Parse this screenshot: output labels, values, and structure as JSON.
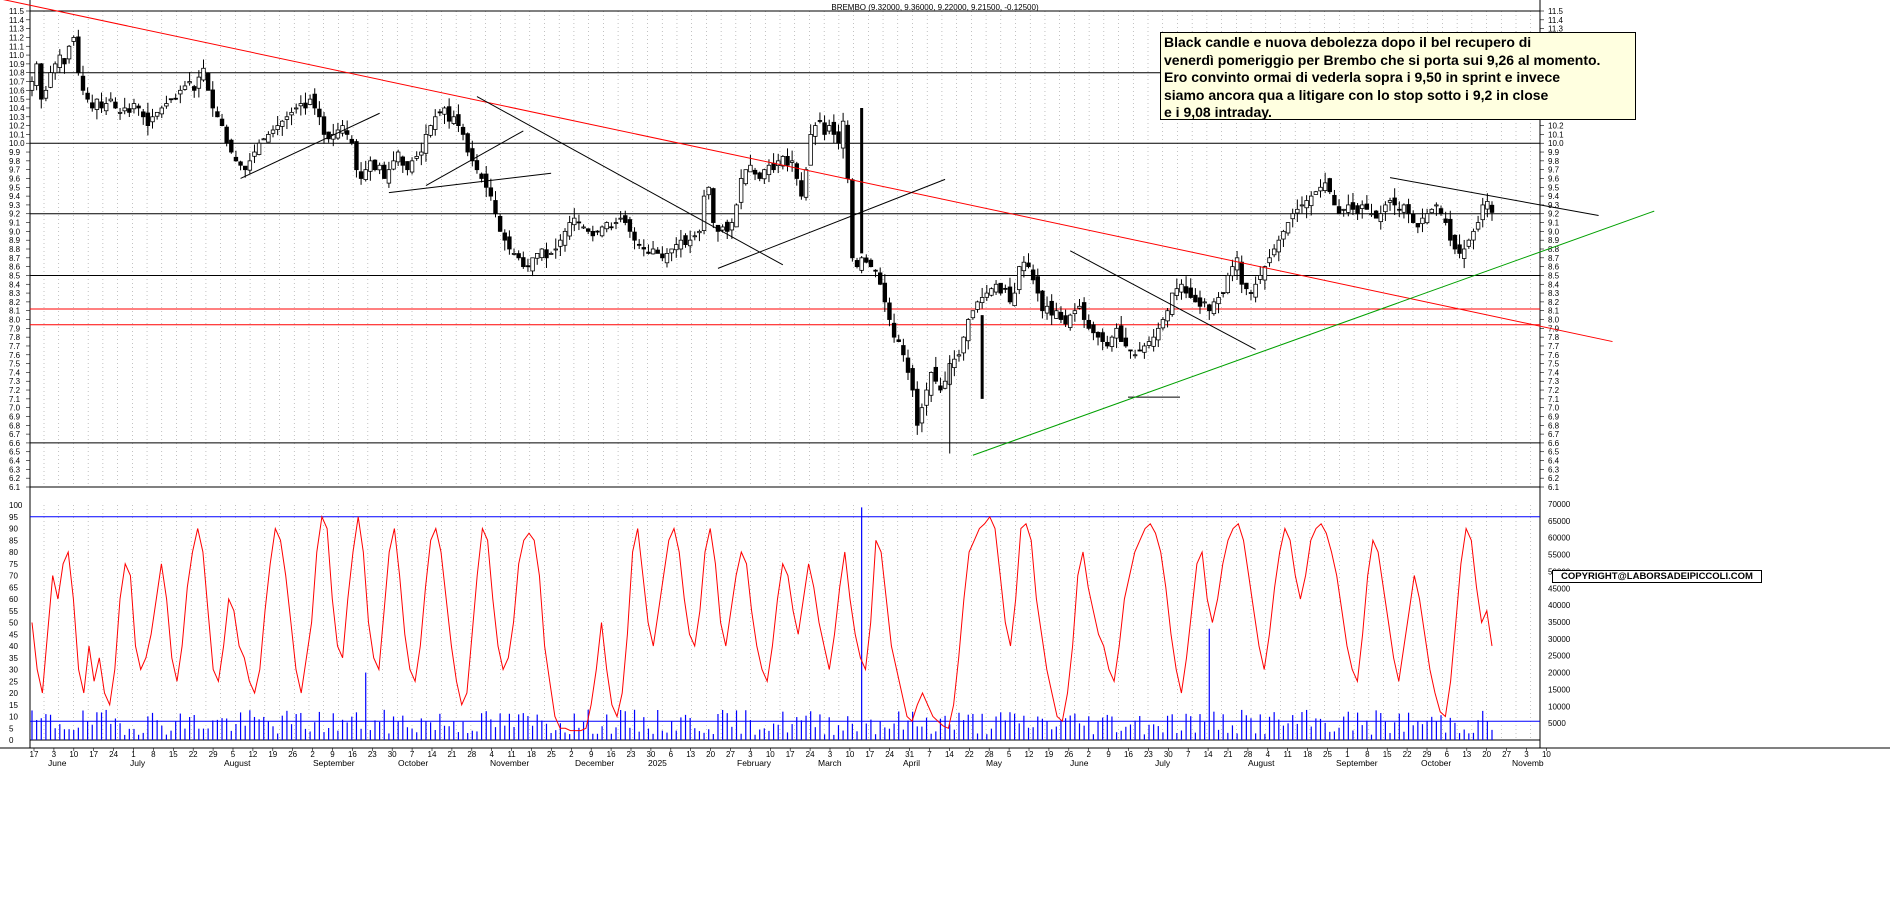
{
  "header": "BREMBO (9.32000, 9.36000, 9.22000, 9.21500, -0.12500)",
  "comment": [
    "Black candle  e nuova debolezza dopo il bel recupero di",
    "venerdì pomeriggio per Brembo che si porta sui 9,26 al momento.",
    "Ero convinto ormai di vederla sopra i 9,50 in sprint e invece",
    "siamo ancora qua a litigare con lo stop sotto i 9,2 in close",
    "e i 9,08 intraday."
  ],
  "copyright": "COPYRIGHT@LABORSADEIPICCOLI.COM",
  "colors": {
    "candle": "#000000",
    "stochastic": "#ff0000",
    "volume": "#0000ff",
    "support_line": "#00a000",
    "resistance_line": "#ff0000"
  },
  "chart_data": [
    {
      "type": "candlestick",
      "title": "BREMBO (9.32000, 9.36000, 9.22000, 9.21500, -0.12500)",
      "last": {
        "open": 9.32,
        "high": 9.36,
        "low": 9.22,
        "close": 9.215,
        "change": -0.125
      },
      "ylim": [
        6.1,
        11.5
      ],
      "y_ticks": [
        "11.5",
        "11.4",
        "11.3",
        "11.2",
        "11.1",
        "11.0",
        "10.9",
        "10.8",
        "10.7",
        "10.6",
        "10.5",
        "10.4",
        "10.3",
        "10.2",
        "10.1",
        "10.0",
        "9.9",
        "9.8",
        "9.7",
        "9.6",
        "9.5",
        "9.4",
        "9.3",
        "9.2",
        "9.1",
        "9.0",
        "8.9",
        "8.8",
        "8.7",
        "8.6",
        "8.5",
        "8.4",
        "8.3",
        "8.2",
        "8.1",
        "8.0",
        "7.9",
        "7.8",
        "7.7",
        "7.6",
        "7.5",
        "7.4",
        "7.3",
        "7.2",
        "7.1",
        "7.0",
        "6.9",
        "6.8",
        "6.7",
        "6.6",
        "6.5",
        "6.4",
        "6.3",
        "6.2",
        "6.1"
      ],
      "horizontal_levels_black": [
        10.8,
        10.0,
        9.2,
        8.5,
        6.6
      ],
      "horizontal_levels_red": [
        8.12,
        7.94
      ],
      "trendlines": [
        {
          "color": "red",
          "from": [
            -8,
            11.65
          ],
          "to": [
            341,
            7.75
          ]
        },
        {
          "color": "green",
          "from": [
            203,
            6.46
          ],
          "to": [
            350,
            9.23
          ]
        },
        {
          "color": "black",
          "from": [
            45,
            9.6
          ],
          "to": [
            75,
            10.34
          ]
        },
        {
          "color": "black",
          "from": [
            77,
            9.44
          ],
          "to": [
            112,
            9.66
          ]
        },
        {
          "color": "black",
          "from": [
            85,
            9.52
          ],
          "to": [
            106,
            10.14
          ]
        },
        {
          "color": "black",
          "from": [
            96,
            10.53
          ],
          "to": [
            162,
            8.62
          ]
        },
        {
          "color": "black",
          "from": [
            148,
            8.58
          ],
          "to": [
            197,
            9.59
          ]
        },
        {
          "color": "black",
          "from": [
            224,
            8.78
          ],
          "to": [
            264,
            7.66
          ]
        },
        {
          "color": "black",
          "from": [
            293,
            9.61
          ],
          "to": [
            338,
            9.18
          ]
        }
      ],
      "closes": [
        10.7,
        10.9,
        10.5,
        10.6,
        10.8,
        10.9,
        11.0,
        10.9,
        11.1,
        11.2,
        10.8,
        10.6,
        10.5,
        10.4,
        10.5,
        10.4,
        10.45,
        10.5,
        10.4,
        10.35,
        10.4,
        10.35,
        10.45,
        10.4,
        10.3,
        10.2,
        10.3,
        10.35,
        10.4,
        10.45,
        10.5,
        10.5,
        10.6,
        10.65,
        10.7,
        10.6,
        10.75,
        10.85,
        10.6,
        10.4,
        10.3,
        10.2,
        10.0,
        9.9,
        9.8,
        9.75,
        9.7,
        9.8,
        9.9,
        10.0,
        10.05,
        10.1,
        10.15,
        10.2,
        10.25,
        10.3,
        10.35,
        10.4,
        10.45,
        10.4,
        10.5,
        10.4,
        10.3,
        10.1,
        10.05,
        10.1,
        10.15,
        10.2,
        10.1,
        10.0,
        9.7,
        9.6,
        9.7,
        9.8,
        9.7,
        9.75,
        9.6,
        9.7,
        9.8,
        9.9,
        9.75,
        9.7,
        9.8,
        9.85,
        9.9,
        10.1,
        10.2,
        10.3,
        10.35,
        10.4,
        10.25,
        10.3,
        10.2,
        10.1,
        9.9,
        9.8,
        9.7,
        9.6,
        9.5,
        9.4,
        9.2,
        9.0,
        8.9,
        8.8,
        8.75,
        8.7,
        8.6,
        8.6,
        8.7,
        8.75,
        8.8,
        8.7,
        8.75,
        8.8,
        8.9,
        9.0,
        9.1,
        9.15,
        9.1,
        9.05,
        9.0,
        8.95,
        9.0,
        9.05,
        9.1,
        9.05,
        9.1,
        9.15,
        9.1,
        9.0,
        8.9,
        8.85,
        8.8,
        8.75,
        8.8,
        8.75,
        8.7,
        8.75,
        8.8,
        8.85,
        8.9,
        8.85,
        8.9,
        8.95,
        9.0,
        9.4,
        9.5,
        9.1,
        9.0,
        9.05,
        9.0,
        9.1,
        9.3,
        9.6,
        9.7,
        9.75,
        9.65,
        9.6,
        9.7,
        9.75,
        9.7,
        9.8,
        9.85,
        9.75,
        9.8,
        9.6,
        9.4,
        9.7,
        10.1,
        10.2,
        10.25,
        10.1,
        10.2,
        10.1,
        10.0,
        10.25,
        9.6,
        8.7,
        8.6,
        8.7,
        8.65,
        8.6,
        8.55,
        8.4,
        8.2,
        8.0,
        7.8,
        7.75,
        7.6,
        7.4,
        7.2,
        6.8,
        7.0,
        7.2,
        7.4,
        7.3,
        7.2,
        7.3,
        7.5,
        7.55,
        7.6,
        7.8,
        8.0,
        8.1,
        8.2,
        8.25,
        8.3,
        8.35,
        8.4,
        8.3,
        8.35,
        8.2,
        8.3,
        8.6,
        8.65,
        8.6,
        8.45,
        8.3,
        8.1,
        8.15,
        8.05,
        8.1,
        8.0,
        7.95,
        8.05,
        8.1,
        8.15,
        8.0,
        7.9,
        7.85,
        7.8,
        7.75,
        7.7,
        7.8,
        7.9,
        7.75,
        7.7,
        7.65,
        7.6,
        7.65,
        7.7,
        7.75,
        7.8,
        7.9,
        8.0,
        8.1,
        8.3,
        8.35,
        8.4,
        8.3,
        8.25,
        8.2,
        8.15,
        8.2,
        8.1,
        8.2,
        8.25,
        8.3,
        8.5,
        8.6,
        8.7,
        8.4,
        8.35,
        8.3,
        8.4,
        8.5,
        8.6,
        8.7,
        8.8,
        8.9,
        9.0,
        9.1,
        9.2,
        9.25,
        9.3,
        9.35,
        9.4,
        9.45,
        9.5,
        9.55,
        9.45,
        9.3,
        9.2,
        9.25,
        9.3,
        9.25,
        9.2,
        9.3,
        9.25,
        9.2,
        9.15,
        9.2,
        9.3,
        9.35,
        9.3,
        9.25,
        9.3,
        9.2,
        9.1,
        9.05,
        9.15,
        9.2,
        9.25,
        9.3,
        9.2,
        9.1,
        8.9,
        8.8,
        8.75,
        8.8,
        8.9,
        9.0,
        9.1,
        9.3,
        9.34,
        9.215
      ],
      "x_day_labels": [
        "17",
        "3",
        "10",
        "17",
        "24",
        "1",
        "8",
        "15",
        "22",
        "29",
        "5",
        "12",
        "19",
        "26",
        "2",
        "9",
        "16",
        "23",
        "30",
        "7",
        "14",
        "21",
        "28",
        "4",
        "11",
        "18",
        "25",
        "2",
        "9",
        "16",
        "23",
        "30",
        "6",
        "13",
        "20",
        "27",
        "3",
        "10",
        "17",
        "24",
        "3",
        "10",
        "17",
        "24",
        "31",
        "7",
        "14",
        "22",
        "28",
        "5",
        "12",
        "19",
        "26",
        "2",
        "9",
        "16",
        "23",
        "30",
        "7",
        "14",
        "21",
        "28",
        "4",
        "11",
        "18",
        "25",
        "1",
        "8",
        "15",
        "22",
        "29",
        "6",
        "13",
        "20",
        "27",
        "3",
        "10"
      ],
      "x_month_labels": [
        "June",
        "July",
        "August",
        "September",
        "October",
        "November",
        "December",
        "2025",
        "February",
        "March",
        "April",
        "May",
        "June",
        "July",
        "August",
        "September",
        "October",
        "Novemb"
      ]
    },
    {
      "type": "line",
      "name": "stochastic",
      "ylim": [
        0,
        100
      ],
      "y_ticks": [
        "100",
        "95",
        "90",
        "85",
        "80",
        "75",
        "70",
        "65",
        "60",
        "55",
        "50",
        "45",
        "40",
        "35",
        "30",
        "25",
        "20",
        "15",
        "10",
        "5",
        "0"
      ],
      "levels": [
        95,
        8
      ],
      "values": [
        50,
        30,
        20,
        45,
        70,
        60,
        75,
        80,
        60,
        30,
        20,
        40,
        25,
        35,
        20,
        15,
        30,
        60,
        75,
        70,
        40,
        30,
        35,
        45,
        60,
        75,
        60,
        35,
        25,
        40,
        65,
        80,
        90,
        80,
        55,
        30,
        25,
        40,
        60,
        55,
        40,
        35,
        25,
        20,
        30,
        55,
        75,
        90,
        85,
        70,
        50,
        30,
        20,
        35,
        50,
        80,
        95,
        90,
        60,
        40,
        35,
        60,
        80,
        95,
        80,
        50,
        35,
        30,
        55,
        80,
        90,
        70,
        45,
        30,
        25,
        40,
        65,
        85,
        90,
        80,
        60,
        40,
        25,
        15,
        20,
        45,
        70,
        90,
        85,
        60,
        40,
        30,
        35,
        50,
        75,
        85,
        88,
        85,
        70,
        40,
        25,
        10,
        5,
        5,
        4,
        4,
        4,
        5,
        15,
        30,
        50,
        30,
        15,
        10,
        20,
        45,
        80,
        90,
        70,
        50,
        40,
        55,
        70,
        85,
        90,
        80,
        60,
        45,
        40,
        55,
        80,
        90,
        75,
        50,
        40,
        55,
        70,
        80,
        75,
        55,
        40,
        30,
        25,
        40,
        60,
        75,
        70,
        55,
        45,
        60,
        75,
        65,
        50,
        40,
        30,
        45,
        65,
        80,
        60,
        45,
        35,
        30,
        50,
        85,
        80,
        60,
        40,
        30,
        20,
        10,
        8,
        15,
        20,
        15,
        10,
        8,
        6,
        5,
        15,
        35,
        60,
        80,
        85,
        90,
        92,
        95,
        90,
        70,
        50,
        40,
        60,
        90,
        92,
        85,
        60,
        45,
        30,
        20,
        10,
        8,
        20,
        40,
        70,
        80,
        65,
        55,
        45,
        40,
        30,
        25,
        40,
        60,
        70,
        80,
        85,
        90,
        92,
        88,
        80,
        65,
        45,
        30,
        20,
        35,
        55,
        75,
        80,
        60,
        50,
        60,
        75,
        85,
        90,
        92,
        85,
        70,
        55,
        40,
        30,
        45,
        65,
        80,
        90,
        85,
        70,
        60,
        70,
        85,
        90,
        92,
        88,
        80,
        70,
        55,
        40,
        30,
        25,
        45,
        70,
        85,
        80,
        65,
        50,
        35,
        25,
        40,
        55,
        70,
        60,
        45,
        30,
        20,
        12,
        10,
        25,
        50,
        75,
        90,
        85,
        65,
        50,
        55,
        40
      ]
    },
    {
      "type": "bar",
      "name": "volume",
      "ylim": [
        0,
        70000
      ],
      "y_ticks": [
        "70000",
        "65000",
        "60000",
        "55000",
        "50000",
        "45000",
        "40000",
        "35000",
        "30000",
        "25000",
        "20000",
        "15000",
        "10000",
        "5000"
      ],
      "peaks": [
        {
          "x": 179,
          "value": 69000
        },
        {
          "x": 254,
          "value": 33000
        },
        {
          "x": 72,
          "value": 20000
        }
      ]
    }
  ]
}
